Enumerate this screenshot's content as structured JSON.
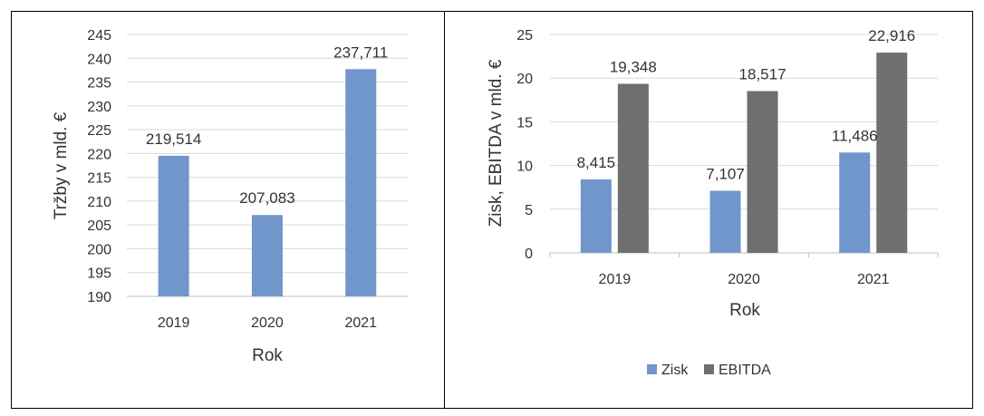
{
  "colors": {
    "series_blue": "#7096cc",
    "series_gray": "#6f6f6f",
    "grid": "#d9d9d9",
    "axis": "#bfbfbf",
    "text": "#333333",
    "frame": "#000000"
  },
  "chart_data": [
    {
      "type": "bar",
      "categories": [
        "2019",
        "2020",
        "2021"
      ],
      "series": [
        {
          "values": [
            219.514,
            207.083,
            237.711
          ],
          "labels": [
            "219,514",
            "207,083",
            "237,711"
          ],
          "color": "#7096cc"
        }
      ],
      "xlabel": "Rok",
      "ylabel": "Tržby v mld. €",
      "ylim": [
        190,
        245
      ],
      "yticks": [
        "190",
        "195",
        "200",
        "205",
        "210",
        "215",
        "220",
        "225",
        "230",
        "235",
        "240",
        "245"
      ],
      "grid": true
    },
    {
      "type": "bar",
      "categories": [
        "2019",
        "2020",
        "2021"
      ],
      "series": [
        {
          "name": "Zisk",
          "values": [
            8.415,
            7.107,
            11.486
          ],
          "labels": [
            "8,415",
            "7,107",
            "11,486"
          ],
          "color": "#7096cc"
        },
        {
          "name": "EBITDA",
          "values": [
            19.348,
            18.517,
            22.916
          ],
          "labels": [
            "19,348",
            "18,517",
            "22,916"
          ],
          "color": "#6f6f6f"
        }
      ],
      "xlabel": "Rok",
      "ylabel": "Zisk, EBITDA v mld. €",
      "ylim": [
        0,
        25
      ],
      "yticks": [
        "0",
        "5",
        "10",
        "15",
        "20",
        "25"
      ],
      "grid": true,
      "legend": "bottom"
    }
  ]
}
